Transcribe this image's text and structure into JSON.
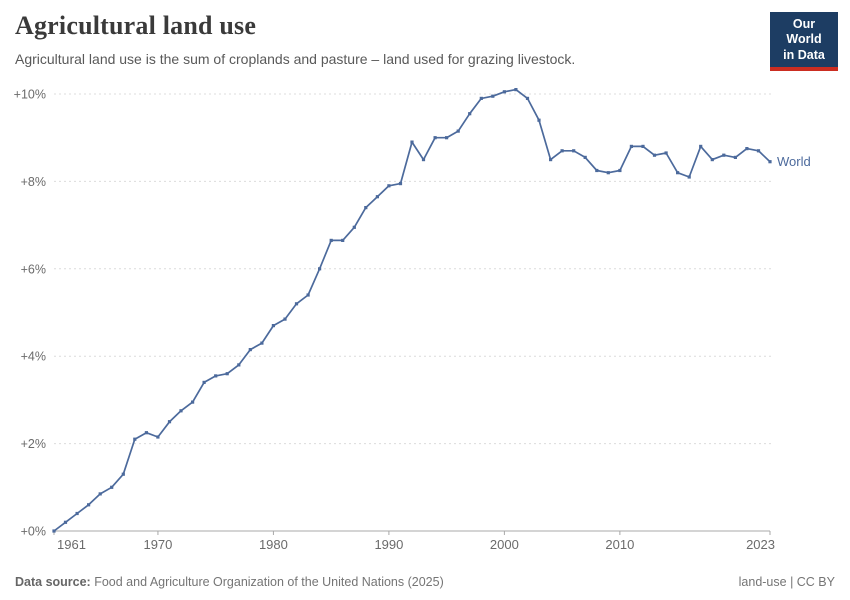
{
  "header": {
    "title": "Agricultural land use",
    "subtitle": "Agricultural land use is the sum of croplands and pasture – land used for grazing livestock.",
    "logo": {
      "line1": "Our World",
      "line2": "in Data",
      "bg_color": "#1d3d63",
      "accent_color": "#cb2d21"
    }
  },
  "chart_data": {
    "type": "line",
    "title": "Agricultural land use",
    "xlabel": "",
    "ylabel": "",
    "xlim": [
      1961,
      2023
    ],
    "ylim": [
      0,
      10.4
    ],
    "grid": "horizontal-dashed",
    "legend_position": "right-of-last-point",
    "x_ticks": [
      1961,
      1970,
      1980,
      1990,
      2000,
      2010,
      2023
    ],
    "y_ticks": [
      0,
      2,
      4,
      6,
      8,
      10
    ],
    "y_tick_labels": [
      "+0%",
      "+2%",
      "+4%",
      "+6%",
      "+8%",
      "+10%"
    ],
    "series": [
      {
        "name": "World",
        "color": "#4c6a9c",
        "x": [
          1961,
          1962,
          1963,
          1964,
          1965,
          1966,
          1967,
          1968,
          1969,
          1970,
          1971,
          1972,
          1973,
          1974,
          1975,
          1976,
          1977,
          1978,
          1979,
          1980,
          1981,
          1982,
          1983,
          1984,
          1985,
          1986,
          1987,
          1988,
          1989,
          1990,
          1991,
          1992,
          1993,
          1994,
          1995,
          1996,
          1997,
          1998,
          1999,
          2000,
          2001,
          2002,
          2003,
          2004,
          2005,
          2006,
          2007,
          2008,
          2009,
          2010,
          2011,
          2012,
          2013,
          2014,
          2015,
          2016,
          2017,
          2018,
          2019,
          2020,
          2021,
          2022,
          2023
        ],
        "values": [
          0,
          0.2,
          0.4,
          0.6,
          0.85,
          1.0,
          1.3,
          2.1,
          2.25,
          2.15,
          2.5,
          2.75,
          2.95,
          3.4,
          3.55,
          3.6,
          3.8,
          4.15,
          4.3,
          4.7,
          4.85,
          5.2,
          5.4,
          6.0,
          6.65,
          6.65,
          6.95,
          7.4,
          7.65,
          7.9,
          7.95,
          8.9,
          8.5,
          9.0,
          9.0,
          9.15,
          9.55,
          9.9,
          9.95,
          10.05,
          10.1,
          9.9,
          9.4,
          8.5,
          8.7,
          8.7,
          8.55,
          8.25,
          8.2,
          8.25,
          8.8,
          8.8,
          8.6,
          8.65,
          8.2,
          8.1,
          8.8,
          8.5,
          8.6,
          8.55,
          8.75,
          8.7,
          8.45
        ]
      }
    ]
  },
  "footer": {
    "datasource_label": "Data source:",
    "datasource_text": "Food and Agriculture Organization of the United Nations (2025)",
    "license_text": "land-use | CC BY"
  }
}
